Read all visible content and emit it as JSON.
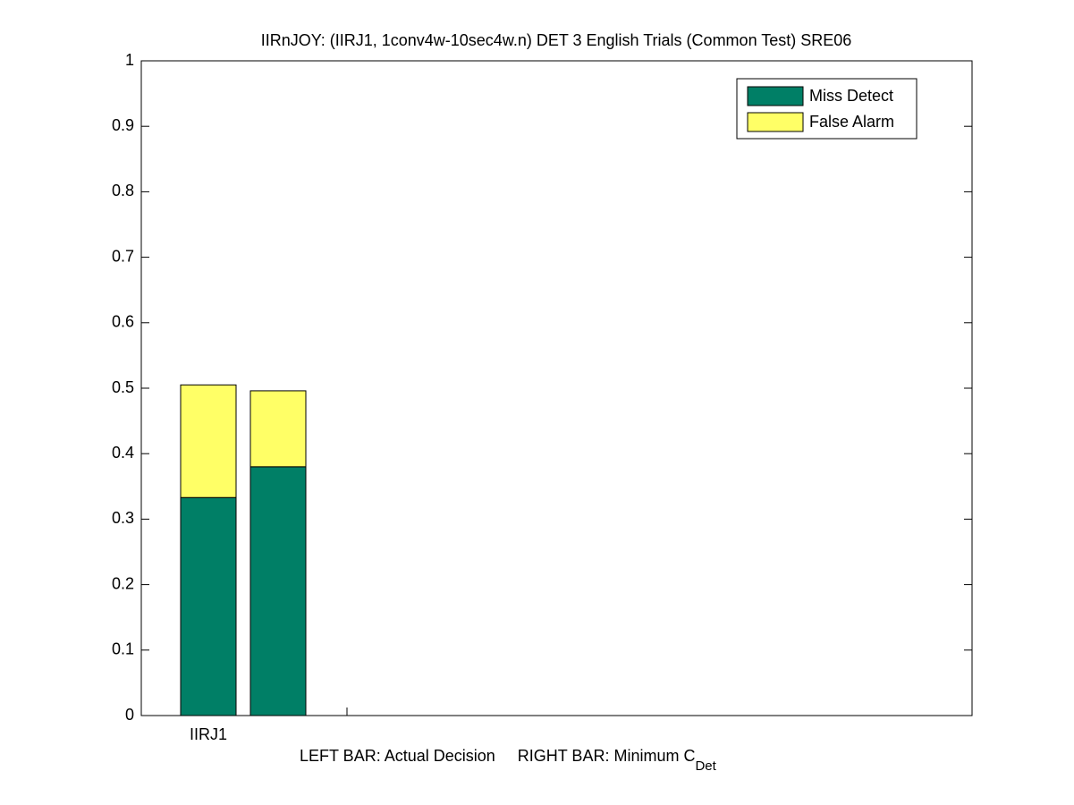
{
  "chart_data": {
    "type": "stacked-bar",
    "title": "IIRnJOY: (IIRJ1, 1conv4w-10sec4w.n) DET 3 English Trials (Common Test) SRE06",
    "xlabel": "LEFT BAR: Actual Decision     RIGHT BAR: Minimum C",
    "xlabel_sub": "Det",
    "categories": [
      "IIRJ1",
      null
    ],
    "series": [
      {
        "name": "Miss Detect",
        "color": "#007f66",
        "values": [
          0.333,
          0.38
        ]
      },
      {
        "name": "False Alarm",
        "color": "#ffff66",
        "values": [
          0.172,
          0.116
        ]
      }
    ],
    "ylim": [
      0,
      1
    ],
    "yticks": [
      0,
      0.1,
      0.2,
      0.3,
      0.4,
      0.5,
      0.6,
      0.7,
      0.8,
      0.9,
      1
    ],
    "legend": "upper-right"
  }
}
